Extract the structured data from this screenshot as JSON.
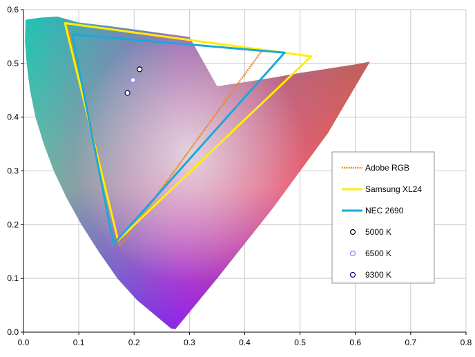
{
  "chart_data": {
    "type": "scatter",
    "title": "",
    "xlabel": "",
    "ylabel": "",
    "xlim": [
      0.0,
      0.8
    ],
    "ylim": [
      0.0,
      0.6
    ],
    "grid": true,
    "legend_position": "right",
    "x_ticks": [
      "0.0",
      "0.1",
      "0.2",
      "0.3",
      "0.4",
      "0.5",
      "0.6",
      "0.7",
      "0.8"
    ],
    "y_ticks": [
      "0.0",
      "0.1",
      "0.2",
      "0.3",
      "0.4",
      "0.5",
      "0.6"
    ],
    "background_colors": {
      "red": "#ff0a50",
      "magenta": "#d21ee6",
      "blue": "#1e28f0",
      "cyan": "#14aadc",
      "green": "#28f06e",
      "yellow": "#e6dc46",
      "white": "#e6e6e6"
    },
    "locus_boundary": [
      [
        0.626,
        0.503
      ],
      [
        0.6,
        0.498
      ],
      [
        0.55,
        0.49
      ],
      [
        0.5,
        0.482
      ],
      [
        0.45,
        0.473
      ],
      [
        0.4,
        0.465
      ],
      [
        0.35,
        0.457
      ],
      [
        0.3,
        0.549
      ],
      [
        0.25,
        0.556
      ],
      [
        0.2,
        0.563
      ],
      [
        0.15,
        0.57
      ],
      [
        0.1,
        0.576
      ],
      [
        0.061,
        0.587
      ],
      [
        0.03,
        0.585
      ],
      [
        0.004,
        0.581
      ],
      [
        0.003,
        0.54
      ],
      [
        0.006,
        0.5
      ],
      [
        0.012,
        0.45
      ],
      [
        0.022,
        0.4
      ],
      [
        0.037,
        0.35
      ],
      [
        0.055,
        0.3
      ],
      [
        0.078,
        0.25
      ],
      [
        0.105,
        0.2
      ],
      [
        0.136,
        0.15
      ],
      [
        0.17,
        0.1
      ],
      [
        0.205,
        0.06
      ],
      [
        0.24,
        0.03
      ],
      [
        0.267,
        0.007
      ],
      [
        0.275,
        0.006
      ],
      [
        0.35,
        0.1
      ],
      [
        0.45,
        0.23
      ],
      [
        0.55,
        0.37
      ],
      [
        0.626,
        0.503
      ]
    ],
    "series": [
      {
        "name": "Adobe RGB",
        "color": "#e8891a",
        "points": [
          [
            0.432,
            0.525
          ],
          [
            0.174,
            0.16
          ],
          [
            0.078,
            0.575
          ]
        ]
      },
      {
        "name": "Samsung XL24",
        "color": "#ffee00",
        "points": [
          [
            0.52,
            0.513
          ],
          [
            0.171,
            0.171
          ],
          [
            0.075,
            0.575
          ]
        ]
      },
      {
        "name": "NEC 2690",
        "color": "#1aa9d8",
        "points": [
          [
            0.472,
            0.52
          ],
          [
            0.163,
            0.164
          ],
          [
            0.088,
            0.554
          ]
        ]
      },
      {
        "name": "5000 K",
        "color": "#000000",
        "marker": "circle",
        "points": [
          [
            0.21,
            0.489
          ]
        ]
      },
      {
        "name": "6500 K",
        "color": "#7f7fff",
        "marker": "circle",
        "points": [
          [
            0.198,
            0.469
          ]
        ]
      },
      {
        "name": "9300 K",
        "color": "#00007f",
        "marker": "circle",
        "points": [
          [
            0.188,
            0.445
          ]
        ]
      }
    ]
  }
}
